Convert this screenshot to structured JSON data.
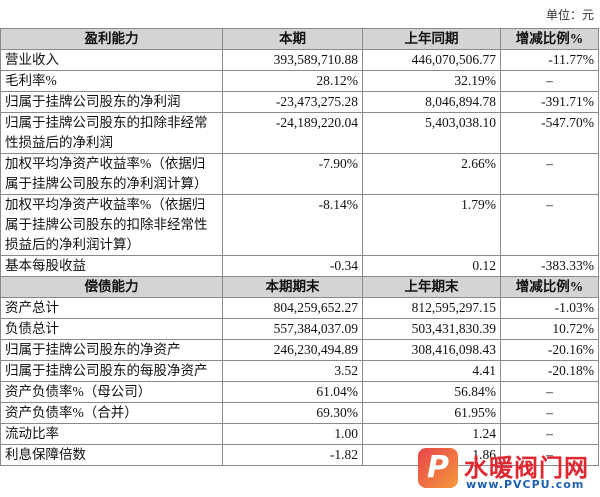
{
  "unit": "单位：元",
  "sections": [
    {
      "header": [
        "盈利能力",
        "本期",
        "上年同期",
        "增减比例%"
      ],
      "rows": [
        [
          "营业收入",
          "393,589,710.88",
          "446,070,506.77",
          "-11.77%"
        ],
        [
          "毛利率%",
          "28.12%",
          "32.19%",
          "–"
        ],
        [
          "归属于挂牌公司股东的净利润",
          "-23,473,275.28",
          "8,046,894.78",
          "-391.71%"
        ],
        [
          "归属于挂牌公司股东的扣除非经常性损益后的净利润",
          "-24,189,220.04",
          "5,403,038.10",
          "-547.70%"
        ],
        [
          "加权平均净资产收益率%（依据归属于挂牌公司股东的净利润计算）",
          "-7.90%",
          "2.66%",
          "–"
        ],
        [
          "加权平均净资产收益率%（依据归属于挂牌公司股东的扣除非经常性损益后的净利润计算）",
          "-8.14%",
          "1.79%",
          "–"
        ],
        [
          "基本每股收益",
          "-0.34",
          "0.12",
          "-383.33%"
        ]
      ]
    },
    {
      "header": [
        "偿债能力",
        "本期期末",
        "上年期末",
        "增减比例%"
      ],
      "rows": [
        [
          "资产总计",
          "804,259,652.27",
          "812,595,297.15",
          "-1.03%"
        ],
        [
          "负债总计",
          "557,384,037.09",
          "503,431,830.39",
          "10.72%"
        ],
        [
          "归属于挂牌公司股东的净资产",
          "246,230,494.89",
          "308,416,098.43",
          "-20.16%"
        ],
        [
          "归属于挂牌公司股东的每股净资产",
          "3.52",
          "4.41",
          "-20.18%"
        ],
        [
          "资产负债率%（母公司）",
          "61.04%",
          "56.84%",
          "–"
        ],
        [
          "资产负债率%（合并）",
          "69.30%",
          "61.95%",
          "–"
        ],
        [
          "流动比率",
          "1.00",
          "1.24",
          "–"
        ],
        [
          "利息保障倍数",
          "-1.82",
          "1.86",
          "–"
        ]
      ]
    }
  ],
  "watermark": {
    "name": "水暖阀门网",
    "url": "www.PVCPU.com"
  }
}
